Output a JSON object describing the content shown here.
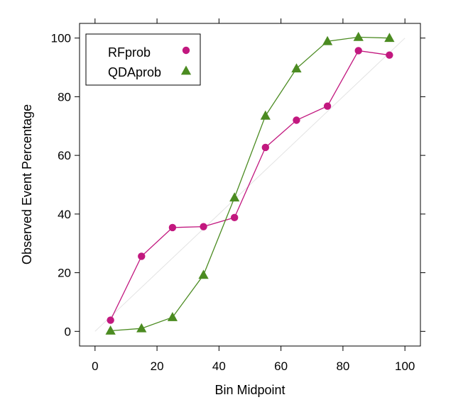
{
  "chart_data": {
    "type": "line",
    "title": "",
    "xlabel": "Bin Midpoint",
    "ylabel": "Observed Event Percentage",
    "xlim": [
      -5,
      105
    ],
    "ylim": [
      -5,
      105
    ],
    "xticks": [
      0,
      20,
      40,
      60,
      80,
      100
    ],
    "yticks": [
      0,
      20,
      40,
      60,
      80,
      100
    ],
    "grid": false,
    "reference_line": {
      "from": [
        0,
        0
      ],
      "to": [
        100,
        100
      ],
      "color": "#e3e3e3"
    },
    "legend": {
      "placement": "top-left"
    },
    "x": [
      5,
      15,
      25,
      35,
      45,
      55,
      65,
      75,
      85,
      95
    ],
    "series": [
      {
        "name": "RFprob",
        "marker": "circle",
        "color": "#c2187f",
        "values": [
          3.8,
          25.6,
          35.4,
          35.7,
          38.8,
          62.7,
          72.0,
          76.8,
          95.7,
          94.2
        ]
      },
      {
        "name": "QDAprob",
        "marker": "triangle",
        "color": "#4b8b21",
        "values": [
          0.2,
          1.0,
          4.8,
          19.2,
          45.6,
          73.5,
          89.6,
          98.9,
          100.3,
          100.0
        ]
      }
    ]
  }
}
